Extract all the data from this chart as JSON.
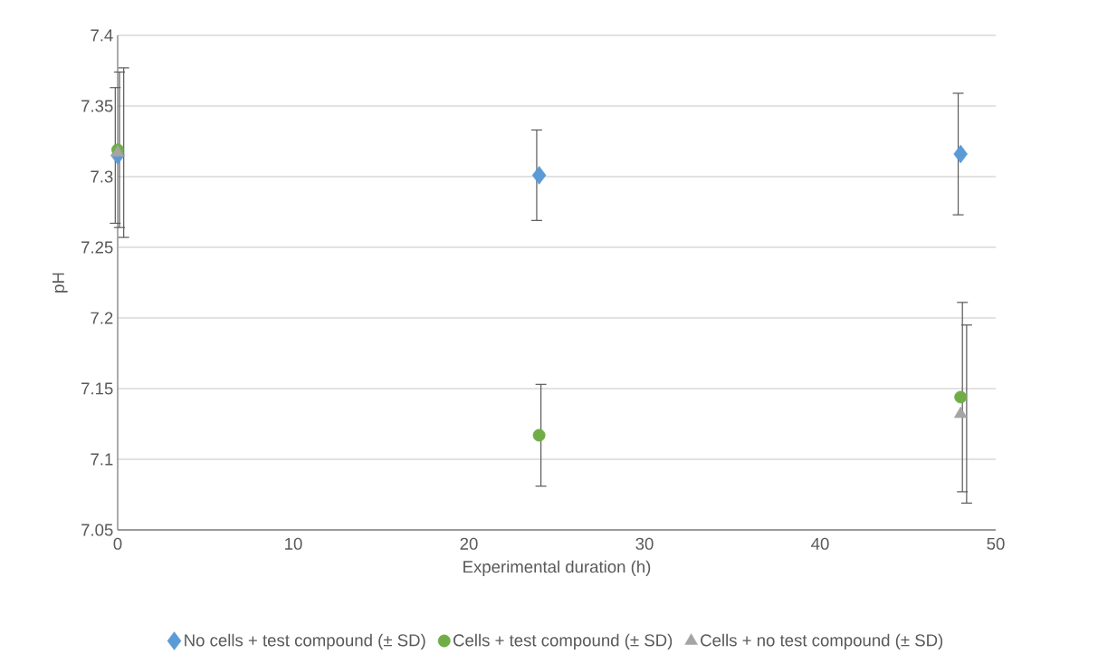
{
  "chart_data": {
    "type": "scatter",
    "xlabel": "Experimental duration (h)",
    "ylabel": "pH",
    "xlim": [
      0,
      50
    ],
    "xticks": [
      0,
      10,
      20,
      30,
      40,
      50
    ],
    "ylim": [
      7.05,
      7.4
    ],
    "yticks": [
      7.05,
      7.1,
      7.15,
      7.2,
      7.25,
      7.3,
      7.35,
      7.4
    ],
    "grid": "y",
    "legend": "bottom",
    "series": [
      {
        "name": "No cells + test compound (± SD)",
        "color": "#5b9bd5",
        "marker": "diamond",
        "x": [
          0,
          24,
          48
        ],
        "values": [
          7.315,
          7.301,
          7.316
        ],
        "errors": [
          0.048,
          0.032,
          0.043
        ]
      },
      {
        "name": "Cells + test compound (± SD)",
        "color": "#70ad47",
        "marker": "circle",
        "x": [
          0,
          24,
          48
        ],
        "values": [
          7.319,
          7.117,
          7.144
        ],
        "errors": [
          0.055,
          0.036,
          0.067
        ]
      },
      {
        "name": "Cells + no test compound (± SD)",
        "color": "#a5a5a5",
        "marker": "triangle",
        "x": [
          0,
          48
        ],
        "values": [
          7.317,
          7.132
        ],
        "errors": [
          0.06,
          0.063
        ]
      }
    ]
  }
}
